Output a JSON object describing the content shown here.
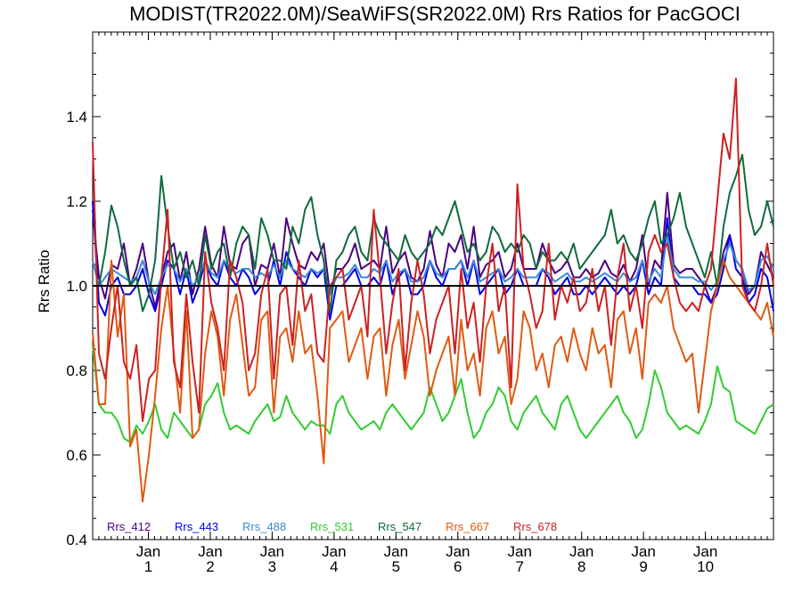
{
  "chart_data": {
    "type": "line",
    "title": "MODIST(TR2022.0M)/SeaWiFS(SR2022.0M)  Rrs Ratios for PacGOCI",
    "ylabel": "Rrs Ratio",
    "xlabel": "",
    "ylim": [
      0.4,
      1.6
    ],
    "xlim": [
      0,
      110
    ],
    "yticks": [
      0.4,
      0.6,
      0.8,
      1.0,
      1.2,
      1.4
    ],
    "ytick_labels": [
      "0.4",
      "0.6",
      "0.8",
      "1.0",
      "1.2",
      "1.4"
    ],
    "xticks": [
      {
        "pos": 9,
        "label_top": "Jan",
        "label_bottom": "1"
      },
      {
        "pos": 19,
        "label_top": "Jan",
        "label_bottom": "2"
      },
      {
        "pos": 29,
        "label_top": "Jan",
        "label_bottom": "3"
      },
      {
        "pos": 39,
        "label_top": "Jan",
        "label_bottom": "4"
      },
      {
        "pos": 49,
        "label_top": "Jan",
        "label_bottom": "5"
      },
      {
        "pos": 59,
        "label_top": "Jan",
        "label_bottom": "6"
      },
      {
        "pos": 69,
        "label_top": "Jan",
        "label_bottom": "7"
      },
      {
        "pos": 79,
        "label_top": "Jan",
        "label_bottom": "8"
      },
      {
        "pos": 89,
        "label_top": "Jan",
        "label_bottom": "9"
      },
      {
        "pos": 99,
        "label_top": "Jan",
        "label_bottom": "10"
      }
    ],
    "reference_line": 1.0,
    "legend_position": "bottom-left",
    "series": [
      {
        "name": "Rrs_412",
        "color": "#4b0082",
        "values": [
          1.18,
          1.02,
          0.97,
          1.05,
          1.04,
          1.1,
          1.0,
          1.04,
          1.1,
          1.01,
          0.95,
          1.02,
          1.08,
          1.1,
          1.01,
          1.08,
          0.98,
          1.04,
          1.14,
          1.05,
          1.02,
          1.14,
          1.05,
          1.04,
          1.1,
          1.12,
          1.0,
          1.05,
          1.04,
          1.1,
          1.02,
          1.16,
          1.1,
          1.05,
          1.04,
          1.08,
          1.06,
          1.1,
          0.98,
          1.04,
          1.04,
          1.06,
          1.1,
          1.04,
          1.05,
          1.06,
          1.04,
          1.14,
          1.03,
          1.06,
          1.08,
          1.02,
          1.01,
          1.04,
          1.13,
          1.05,
          1.02,
          1.1,
          1.08,
          1.12,
          1.04,
          1.14,
          1.02,
          1.05,
          1.06,
          1.08,
          1.02,
          1.04,
          1.1,
          1.04,
          1.04,
          1.04,
          1.1,
          1.06,
          1.03,
          1.04,
          1.06,
          1.02,
          1.02,
          1.04,
          1.02,
          1.03,
          1.06,
          1.03,
          1.02,
          1.05,
          1.01,
          1.04,
          1.12,
          1.0,
          1.06,
          1.04,
          1.22,
          1.05,
          1.03,
          1.04,
          1.04,
          1.02,
          1.0,
          0.96,
          1.0,
          1.08,
          1.12,
          1.06,
          1.04,
          0.98,
          1.0,
          1.08,
          1.05,
          1.02
        ]
      },
      {
        "name": "Rrs_443",
        "color": "#0000e6",
        "values": [
          1.2,
          0.96,
          0.93,
          1.0,
          1.02,
          0.98,
          0.98,
          1.0,
          1.04,
          0.98,
          0.94,
          1.0,
          1.06,
          1.04,
          0.98,
          1.04,
          0.96,
          1.0,
          1.06,
          1.02,
          1.0,
          1.06,
          1.02,
          1.0,
          1.04,
          1.02,
          0.98,
          1.0,
          1.0,
          1.06,
          1.0,
          1.08,
          1.04,
          1.02,
          1.0,
          1.04,
          1.02,
          1.04,
          0.92,
          1.0,
          1.0,
          1.02,
          1.04,
          1.0,
          1.0,
          1.02,
          1.0,
          1.06,
          0.98,
          1.02,
          1.04,
          0.98,
          0.98,
          1.0,
          1.06,
          1.02,
          1.0,
          1.04,
          1.04,
          1.06,
          1.0,
          1.06,
          0.98,
          1.0,
          1.02,
          1.04,
          0.98,
          1.0,
          1.04,
          1.0,
          1.0,
          1.0,
          1.04,
          1.02,
          0.98,
          1.0,
          1.02,
          0.98,
          0.98,
          1.0,
          0.98,
          1.0,
          1.02,
          1.0,
          0.98,
          1.0,
          0.98,
          1.0,
          1.06,
          0.98,
          1.02,
          1.0,
          1.16,
          1.02,
          1.0,
          1.0,
          1.0,
          0.98,
          0.98,
          0.96,
          0.98,
          1.04,
          1.12,
          1.04,
          1.02,
          0.96,
          0.98,
          1.04,
          1.02,
          0.94
        ]
      },
      {
        "name": "Rrs_488",
        "color": "#3a8bd6",
        "values": [
          1.06,
          1.0,
          1.02,
          1.04,
          1.03,
          1.02,
          1.01,
          1.02,
          1.06,
          1.01,
          0.98,
          1.02,
          1.05,
          1.04,
          1.01,
          1.04,
          1.0,
          1.02,
          1.06,
          1.03,
          1.02,
          1.06,
          1.04,
          1.03,
          1.04,
          1.04,
          1.02,
          1.03,
          1.02,
          1.05,
          1.02,
          1.06,
          1.04,
          1.03,
          1.02,
          1.04,
          1.03,
          1.04,
          0.98,
          1.02,
          1.02,
          1.03,
          1.05,
          1.02,
          1.02,
          1.04,
          1.03,
          1.06,
          1.01,
          1.03,
          1.04,
          1.01,
          1.01,
          1.02,
          1.06,
          1.03,
          1.02,
          1.04,
          1.04,
          1.06,
          1.02,
          1.06,
          1.01,
          1.02,
          1.03,
          1.04,
          1.01,
          1.02,
          1.04,
          1.02,
          1.02,
          1.02,
          1.04,
          1.03,
          1.01,
          1.02,
          1.03,
          1.01,
          1.01,
          1.02,
          1.01,
          1.02,
          1.03,
          1.02,
          1.01,
          1.03,
          1.01,
          1.02,
          1.06,
          1.01,
          1.04,
          1.02,
          1.12,
          1.04,
          1.02,
          1.02,
          1.02,
          1.01,
          1.01,
          0.99,
          1.01,
          1.06,
          1.1,
          1.06,
          1.04,
          0.99,
          1.0,
          1.06,
          1.07,
          1.04
        ]
      },
      {
        "name": "Rrs_531",
        "color": "#33cc33",
        "values": [
          0.86,
          0.72,
          0.7,
          0.7,
          0.68,
          0.64,
          0.63,
          0.67,
          0.65,
          0.68,
          0.72,
          0.66,
          0.64,
          0.7,
          0.68,
          0.66,
          0.64,
          0.66,
          0.72,
          0.74,
          0.77,
          0.7,
          0.66,
          0.67,
          0.66,
          0.65,
          0.68,
          0.7,
          0.72,
          0.68,
          0.69,
          0.74,
          0.7,
          0.68,
          0.66,
          0.68,
          0.67,
          0.67,
          0.65,
          0.72,
          0.74,
          0.7,
          0.68,
          0.66,
          0.67,
          0.68,
          0.66,
          0.7,
          0.72,
          0.7,
          0.68,
          0.66,
          0.68,
          0.7,
          0.76,
          0.72,
          0.68,
          0.7,
          0.74,
          0.78,
          0.7,
          0.64,
          0.66,
          0.7,
          0.72,
          0.76,
          0.74,
          0.68,
          0.66,
          0.7,
          0.72,
          0.74,
          0.7,
          0.68,
          0.66,
          0.72,
          0.74,
          0.7,
          0.66,
          0.64,
          0.66,
          0.68,
          0.7,
          0.72,
          0.74,
          0.7,
          0.68,
          0.64,
          0.66,
          0.72,
          0.8,
          0.76,
          0.7,
          0.68,
          0.66,
          0.67,
          0.66,
          0.65,
          0.68,
          0.72,
          0.81,
          0.76,
          0.75,
          0.68,
          0.67,
          0.66,
          0.65,
          0.68,
          0.71,
          0.72
        ]
      },
      {
        "name": "Rrs_547",
        "color": "#0f6b3c",
        "values": [
          1.0,
          1.0,
          1.08,
          1.19,
          1.14,
          1.06,
          1.0,
          1.02,
          0.94,
          0.98,
          1.06,
          1.26,
          1.14,
          1.04,
          1.08,
          1.02,
          1.06,
          1.0,
          1.12,
          1.04,
          1.08,
          1.1,
          1.02,
          1.1,
          1.14,
          1.12,
          1.04,
          1.16,
          1.12,
          1.06,
          1.06,
          1.04,
          1.14,
          1.1,
          1.18,
          1.21,
          1.12,
          1.06,
          0.94,
          1.06,
          1.08,
          1.12,
          1.14,
          1.08,
          1.06,
          1.16,
          1.12,
          1.1,
          1.08,
          1.06,
          1.12,
          1.08,
          1.06,
          1.08,
          1.1,
          1.14,
          1.12,
          1.16,
          1.2,
          1.14,
          1.08,
          1.1,
          1.06,
          1.08,
          1.14,
          1.12,
          1.08,
          1.1,
          1.08,
          1.12,
          1.1,
          1.04,
          1.08,
          1.06,
          1.06,
          1.08,
          1.06,
          1.1,
          1.04,
          1.06,
          1.08,
          1.1,
          1.12,
          1.18,
          1.1,
          1.12,
          1.08,
          1.06,
          1.1,
          1.16,
          1.2,
          1.1,
          1.12,
          1.16,
          1.22,
          1.14,
          1.1,
          1.06,
          1.02,
          1.08,
          1.0,
          1.14,
          1.22,
          1.26,
          1.31,
          1.18,
          1.12,
          1.14,
          1.2,
          1.14
        ]
      },
      {
        "name": "Rrs_667",
        "color": "#e05a12",
        "values": [
          0.89,
          0.72,
          0.72,
          1.06,
          0.88,
          0.98,
          0.62,
          0.66,
          0.49,
          0.6,
          0.74,
          0.9,
          1.0,
          0.84,
          0.7,
          0.94,
          0.64,
          0.66,
          0.84,
          0.94,
          0.88,
          0.74,
          0.92,
          0.98,
          0.86,
          0.74,
          0.76,
          0.92,
          0.94,
          0.7,
          0.88,
          0.9,
          0.82,
          0.94,
          0.84,
          0.86,
          0.74,
          0.58,
          0.9,
          0.92,
          0.94,
          0.82,
          0.86,
          0.9,
          0.78,
          0.88,
          0.9,
          0.74,
          0.86,
          0.92,
          0.78,
          0.86,
          0.94,
          0.88,
          0.74,
          0.8,
          0.84,
          0.88,
          0.74,
          0.92,
          0.8,
          0.84,
          0.74,
          0.9,
          0.94,
          0.84,
          0.88,
          0.72,
          0.78,
          0.94,
          0.9,
          0.8,
          0.84,
          0.76,
          0.86,
          0.88,
          0.82,
          0.9,
          0.84,
          0.8,
          0.9,
          0.84,
          0.86,
          0.76,
          0.92,
          0.94,
          0.84,
          0.9,
          0.78,
          0.96,
          0.98,
          0.96,
          1.0,
          0.9,
          0.86,
          0.82,
          0.84,
          0.7,
          0.82,
          0.94,
          1.0,
          1.06,
          1.02,
          1.0,
          0.98,
          0.96,
          0.94,
          0.92,
          0.96,
          0.88
        ]
      },
      {
        "name": "Rrs_678",
        "color": "#cc2222",
        "values": [
          1.34,
          0.84,
          0.78,
          0.9,
          1.0,
          0.82,
          0.78,
          0.86,
          0.68,
          0.78,
          0.8,
          1.02,
          1.18,
          0.82,
          0.76,
          0.98,
          0.82,
          0.7,
          1.08,
          0.96,
          0.9,
          0.8,
          1.06,
          1.02,
          0.96,
          0.8,
          0.84,
          0.98,
          1.04,
          0.78,
          0.98,
          1.0,
          0.86,
          1.06,
          0.94,
          0.98,
          0.84,
          0.82,
          1.0,
          1.02,
          1.04,
          0.92,
          0.96,
          1.0,
          0.88,
          1.18,
          1.02,
          0.84,
          0.96,
          1.04,
          0.8,
          0.96,
          1.06,
          0.98,
          0.84,
          0.92,
          0.96,
          1.0,
          0.84,
          1.04,
          0.9,
          0.96,
          0.82,
          1.0,
          1.1,
          0.94,
          1.0,
          0.76,
          1.24,
          1.04,
          0.98,
          0.9,
          0.94,
          1.1,
          0.92,
          1.0,
          0.96,
          1.02,
          0.94,
          0.96,
          1.04,
          0.94,
          1.0,
          0.86,
          1.02,
          1.1,
          0.94,
          1.0,
          0.9,
          1.08,
          1.12,
          1.08,
          1.1,
          1.02,
          0.96,
          0.94,
          0.96,
          0.94,
          1.0,
          1.04,
          1.2,
          1.36,
          1.3,
          1.49,
          1.0,
          0.96,
          0.94,
          1.0,
          1.1,
          1.0
        ]
      }
    ]
  }
}
